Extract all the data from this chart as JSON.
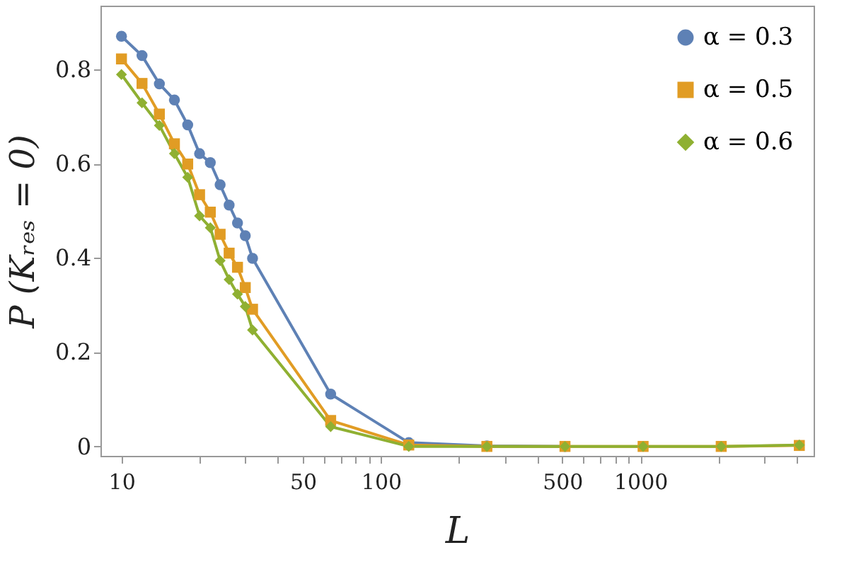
{
  "chart_data": {
    "type": "line",
    "xlabel": "L",
    "ylabel": "P (Kᵣₑₛ = 0)",
    "log": "x",
    "legend": "top right",
    "grid": false,
    "x": [
      10,
      12,
      14,
      16,
      18,
      20,
      22,
      24,
      26,
      28,
      30,
      32,
      64,
      128,
      256,
      512,
      1024,
      2048,
      4096
    ],
    "xlim": [
      8.3,
      4650
    ],
    "ylim": [
      -0.02,
      0.935
    ],
    "xticks": [
      10,
      {
        "value": 20,
        "label": null
      },
      {
        "value": 30,
        "label": null
      },
      {
        "value": 40,
        "label": null
      },
      50,
      {
        "value": 60,
        "label": null
      },
      {
        "value": 70,
        "label": null
      },
      {
        "value": 80,
        "label": null
      },
      {
        "value": 90,
        "label": null
      },
      100,
      {
        "value": 200,
        "label": null
      },
      {
        "value": 300,
        "label": null
      },
      {
        "value": 400,
        "label": null
      },
      500,
      {
        "value": 600,
        "label": null
      },
      {
        "value": 700,
        "label": null
      },
      {
        "value": 800,
        "label": null
      },
      {
        "value": 900,
        "label": null
      },
      1000,
      {
        "value": 2000,
        "label": null
      },
      {
        "value": 3000,
        "label": null
      },
      {
        "value": 4000,
        "label": null
      }
    ],
    "yticks": [
      0,
      0.2,
      0.4,
      0.6,
      0.8
    ],
    "series": [
      {
        "name": "α = 0.3",
        "color": "#5e81b5",
        "marker": "circle",
        "values": [
          0.87,
          0.829,
          0.769,
          0.735,
          0.682,
          0.621,
          0.602,
          0.555,
          0.512,
          0.474,
          0.447,
          0.399,
          0.111,
          0.008,
          0.001,
          0,
          null,
          null,
          null
        ]
      },
      {
        "name": "α = 0.5",
        "color": "#e19c24",
        "marker": "square",
        "values": [
          0.822,
          0.77,
          0.705,
          0.642,
          0.599,
          0.534,
          0.497,
          0.45,
          0.41,
          0.38,
          0.337,
          0.291,
          0.055,
          0.003,
          0,
          0,
          0,
          0,
          0.002
        ]
      },
      {
        "name": "α = 0.6",
        "color": "#8fb032",
        "marker": "diamond",
        "values": [
          0.789,
          0.729,
          0.681,
          0.621,
          0.571,
          0.489,
          0.464,
          0.394,
          0.354,
          0.323,
          0.297,
          0.247,
          0.042,
          0,
          0,
          0,
          0,
          0,
          0.003
        ]
      }
    ]
  }
}
